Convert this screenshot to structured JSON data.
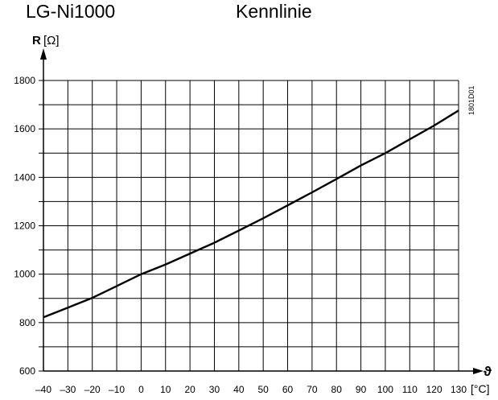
{
  "header": {
    "title": "LG-Ni1000",
    "subtitle": "Kennlinie"
  },
  "figure_code": "1801D01",
  "chart_data": {
    "type": "line",
    "title": "LG-Ni1000",
    "subtitle": "Kennlinie",
    "ylabel_symbol": "R",
    "ylabel_unit": "[Ω]",
    "xlabel_symbol": "ϑ",
    "xlabel_unit": "[°C]",
    "xlim": [
      -40,
      130
    ],
    "ylim": [
      600,
      1800
    ],
    "x_ticks": [
      -40,
      -30,
      -20,
      -10,
      0,
      10,
      20,
      30,
      40,
      50,
      60,
      70,
      80,
      90,
      100,
      110,
      120,
      130
    ],
    "x_tick_labels": [
      "–40",
      "–30",
      "–20",
      "–10",
      "0",
      "10",
      "20",
      "30",
      "40",
      "50",
      "60",
      "70",
      "80",
      "90",
      "100",
      "110",
      "120",
      "130"
    ],
    "y_ticks": [
      600,
      800,
      1000,
      1200,
      1400,
      1600,
      1800
    ],
    "y_tick_labels": [
      "600",
      "800",
      "1000",
      "1200",
      "1400",
      "1600",
      "1800"
    ],
    "grid": true,
    "series": [
      {
        "x": [
          -40,
          -30,
          -20,
          -10,
          0,
          10,
          20,
          30,
          40,
          50,
          60,
          70,
          80,
          90,
          100,
          110,
          120,
          130
        ],
        "values": [
          822,
          862,
          902,
          951,
          1000,
          1040,
          1085,
          1130,
          1180,
          1231,
          1284,
          1338,
          1393,
          1449,
          1500,
          1557,
          1614,
          1676
        ]
      }
    ]
  }
}
